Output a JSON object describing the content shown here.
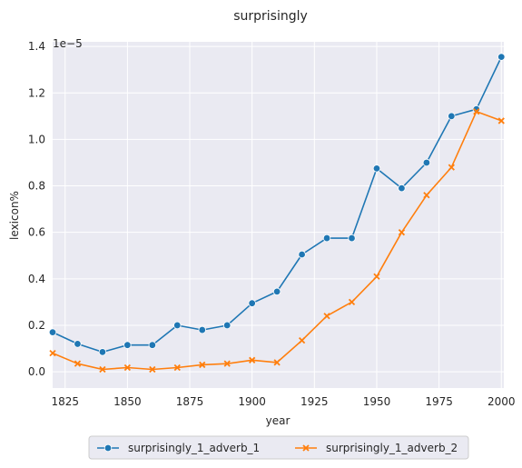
{
  "chart_data": {
    "type": "line",
    "title": "surprisingly",
    "xlabel": "year",
    "ylabel": "lexicon%",
    "y_multiplier_label": "1e−5",
    "xlim": [
      1820,
      2001
    ],
    "ylim": [
      -0.07,
      1.42
    ],
    "x_ticks": [
      1825,
      1850,
      1875,
      1900,
      1925,
      1950,
      1975,
      2000
    ],
    "y_ticks": [
      0.0,
      0.2,
      0.4,
      0.6,
      0.8,
      1.0,
      1.2,
      1.4
    ],
    "y_tick_labels": [
      "0.0",
      "0.2",
      "0.4",
      "0.6",
      "0.8",
      "1.0",
      "1.2",
      "1.4"
    ],
    "x_tick_labels": [
      "1825",
      "1850",
      "1875",
      "1900",
      "1925",
      "1950",
      "1975",
      "2000"
    ],
    "grid": true,
    "legend_position": "bottom-center",
    "x": [
      1820,
      1830,
      1840,
      1850,
      1860,
      1870,
      1880,
      1890,
      1900,
      1910,
      1920,
      1930,
      1940,
      1950,
      1960,
      1970,
      1980,
      1990,
      2000
    ],
    "series": [
      {
        "name": "surprisingly_1_adverb_1",
        "color": "#1f77b4",
        "marker": "circle",
        "values": [
          0.17,
          0.12,
          0.085,
          0.115,
          0.115,
          0.2,
          0.18,
          0.2,
          0.295,
          0.345,
          0.505,
          0.575,
          0.575,
          0.875,
          0.79,
          0.9,
          1.1,
          1.13,
          1.355
        ]
      },
      {
        "name": "surprisingly_1_adverb_2",
        "color": "#ff7f0e",
        "marker": "x",
        "values": [
          0.08,
          0.035,
          0.01,
          0.018,
          0.01,
          0.018,
          0.03,
          0.035,
          0.05,
          0.04,
          0.135,
          0.24,
          0.3,
          0.41,
          0.6,
          0.76,
          0.88,
          1.12,
          1.08
        ]
      }
    ]
  }
}
